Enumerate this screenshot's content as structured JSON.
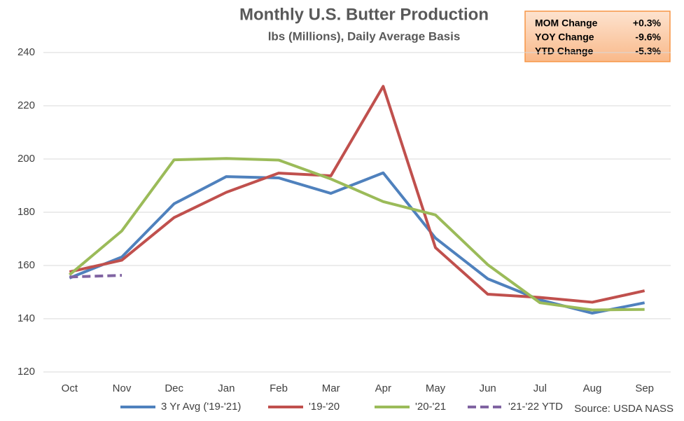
{
  "chart_data": {
    "type": "line",
    "title": "Monthly U.S. Butter Production",
    "subtitle": "lbs (Millions), Daily Average Basis",
    "categories": [
      "Oct",
      "Nov",
      "Dec",
      "Jan",
      "Feb",
      "Mar",
      "Apr",
      "May",
      "Jun",
      "Jul",
      "Aug",
      "Sep"
    ],
    "series": [
      {
        "name": "3 Yr Avg ('19-'21)",
        "color": "#4f81bd",
        "values": [
          155.3,
          163.2,
          183.2,
          193.4,
          192.9,
          187.1,
          194.8,
          170.3,
          155,
          147.1,
          142.1,
          146
        ]
      },
      {
        "name": "'19-'20",
        "color": "#c0504d",
        "values": [
          157.6,
          162,
          178,
          187.5,
          194.7,
          193.7,
          227.3,
          166.7,
          149.2,
          148,
          146.2,
          150.5
        ]
      },
      {
        "name": "'20-'21",
        "color": "#9bbb59",
        "values": [
          156.5,
          173,
          199.7,
          200.2,
          199.6,
          192.5,
          184,
          179,
          160.3,
          146,
          143.3,
          143.5
        ]
      },
      {
        "name": "'21-'22 YTD",
        "color": "#8064a2",
        "dashed": true,
        "values": [
          155.7,
          156.3,
          null,
          null,
          null,
          null,
          null,
          null,
          null,
          null,
          null,
          null
        ]
      }
    ],
    "ylim": [
      120,
      240
    ],
    "yticks": [
      120,
      140,
      160,
      180,
      200,
      220,
      240
    ],
    "grid": true,
    "legend": "bottom",
    "source": "Source: USDA NASS"
  },
  "info_box": {
    "rows": [
      [
        "MOM Change",
        "+0.3%"
      ],
      [
        "YOY Change",
        "-9.6%"
      ],
      [
        "YTD Change",
        "-5.3%"
      ]
    ]
  }
}
